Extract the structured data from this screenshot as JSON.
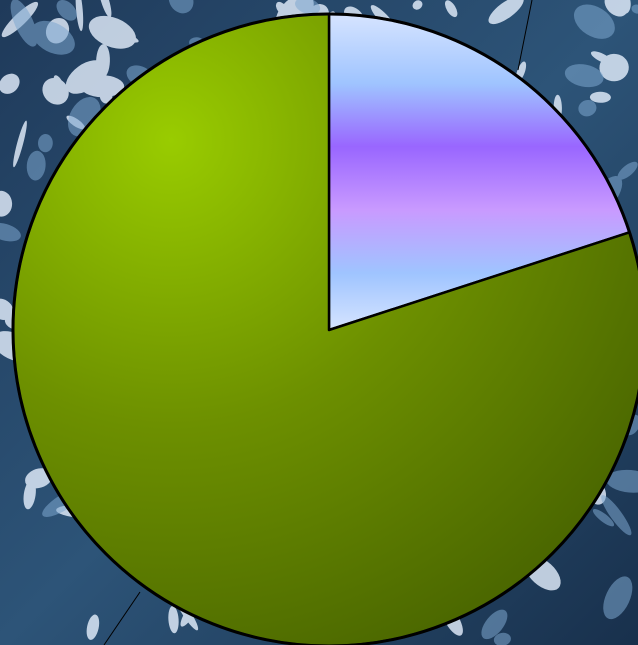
{
  "chart_data": {
    "type": "pie",
    "title": "",
    "slices": [
      {
        "value": 20,
        "color_top": "#cfe0ff",
        "color_mid": "#9966ff",
        "color_bottom": "#cfe0ff"
      },
      {
        "value": 80,
        "color_light": "#99cc00",
        "color_dark": "#4a6600"
      }
    ],
    "start_angle_deg": 0,
    "direction": "clockwise",
    "legend": "none",
    "labels_shown": false,
    "background": "snowy-pine-tree-photo"
  }
}
